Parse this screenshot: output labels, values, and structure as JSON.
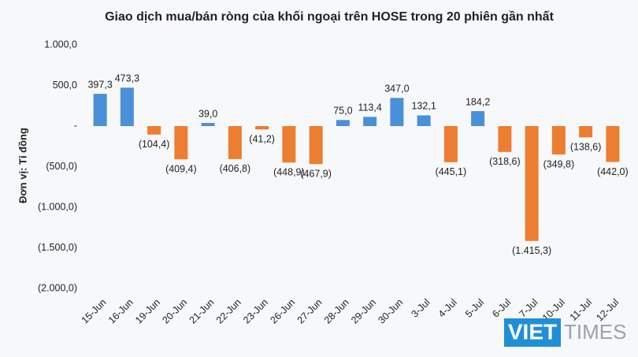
{
  "chart_data": {
    "type": "bar",
    "title": "Giao dịch mua/bán ròng của khối ngoại trên HOSE trong 20 phiên gần nhất",
    "y_label": "Đơn vị: Tỉ đồng",
    "categories": [
      "15-Jun",
      "16-Jun",
      "19-Jun",
      "20-Jun",
      "21-Jun",
      "22-Jun",
      "23-Jun",
      "26-Jun",
      "27-Jun",
      "28-Jun",
      "29-Jun",
      "30-Jun",
      "3-Jul",
      "4-Jul",
      "5-Jul",
      "6-Jul",
      "7-Jul",
      "10-Jul",
      "11-Jul",
      "12-Jul"
    ],
    "values": [
      397.3,
      473.3,
      -104.4,
      -409.4,
      39.0,
      -406.8,
      -41.2,
      -448.9,
      -467.9,
      75.0,
      113.4,
      347.0,
      132.1,
      -445.1,
      184.2,
      -318.6,
      -1415.3,
      -349.8,
      -138.6,
      -442.0
    ],
    "value_labels": [
      "397,3",
      "473,3",
      "(104,4)",
      "(409,4)",
      "39,0",
      "(406,8)",
      "(41,2)",
      "(448,9)",
      "(467,9)",
      "75,0",
      "113,4",
      "347,0",
      "132,1",
      "(445,1)",
      "184,2",
      "(318,6)",
      "(1.415,3)",
      "(349,8)",
      "(138,6)",
      "(442,0)"
    ],
    "positive_color": "#4a90d9",
    "negative_color": "#ed7d31",
    "ylim": [
      -2000,
      1000
    ],
    "yticks": [
      {
        "value": 1000,
        "label": "1.000,0"
      },
      {
        "value": 500,
        "label": "500,0"
      },
      {
        "value": 0,
        "label": "-"
      },
      {
        "value": -500,
        "label": "(500,0)"
      },
      {
        "value": -1000,
        "label": "(1.000,0)"
      },
      {
        "value": -1500,
        "label": "(1.500,0)"
      },
      {
        "value": -2000,
        "label": "(2.000,0)"
      }
    ]
  },
  "logo": {
    "left": "VIET",
    "right": "TIMES"
  }
}
